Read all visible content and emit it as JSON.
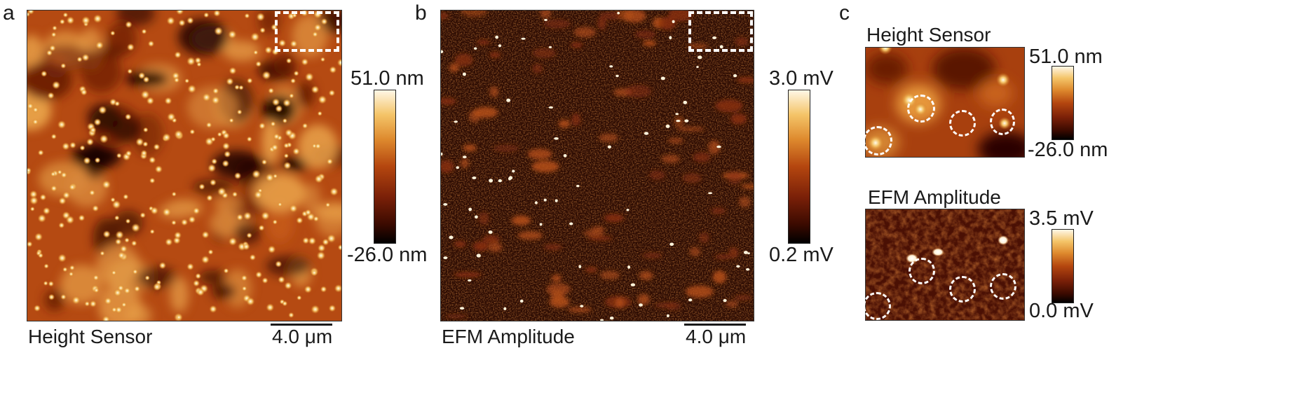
{
  "panel_a": {
    "letter": "a",
    "caption": "Height Sensor",
    "scale_label": "4.0 μm",
    "colorbar_max": "51.0 nm",
    "colorbar_min": "-26.0 nm"
  },
  "panel_b": {
    "letter": "b",
    "caption": "EFM Amplitude",
    "scale_label": "4.0 μm",
    "colorbar_max": "3.0 mV",
    "colorbar_min": "0.2 mV"
  },
  "panel_c": {
    "letter": "c",
    "top": {
      "title": "Height Sensor",
      "colorbar_max": "51.0 nm",
      "colorbar_min": "-26.0 nm"
    },
    "bottom": {
      "title": "EFM Amplitude",
      "colorbar_max": "3.5 mV",
      "colorbar_min": "0.0 mV"
    }
  },
  "colors": {
    "colormap_dark": "#000000",
    "colormap_mid": "#b4460f",
    "colormap_bright": "#fff7e6",
    "annotation": "#ffffff"
  }
}
